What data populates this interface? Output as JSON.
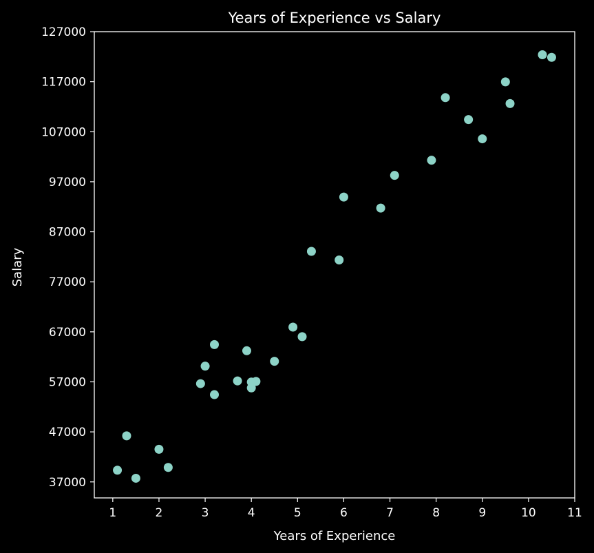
{
  "chart_data": {
    "type": "scatter",
    "title": "Years of Experience vs Salary",
    "xlabel": "Years of Experience",
    "ylabel": "Salary",
    "xlim": [
      0.6,
      11
    ],
    "ylim": [
      33800,
      127000
    ],
    "xticks": [
      1,
      2,
      3,
      4,
      5,
      6,
      7,
      8,
      9,
      10,
      11
    ],
    "yticks": [
      37000,
      47000,
      57000,
      67000,
      77000,
      87000,
      97000,
      107000,
      117000,
      127000
    ],
    "grid": false,
    "legend": "none",
    "colors": {
      "background": "#000000",
      "axes": "#ffffff",
      "text": "#ffffff",
      "marker": "#8dd3c7"
    },
    "x": [
      1.1,
      1.3,
      1.5,
      2.0,
      2.2,
      2.9,
      3.0,
      3.2,
      3.2,
      3.7,
      3.9,
      4.0,
      4.0,
      4.1,
      4.5,
      4.9,
      5.1,
      5.3,
      5.9,
      6.0,
      6.8,
      7.1,
      7.9,
      8.2,
      8.7,
      9.0,
      9.5,
      9.6,
      10.3,
      10.5
    ],
    "y": [
      39343,
      46205,
      37731,
      43525,
      39891,
      56642,
      60150,
      54445,
      64445,
      57189,
      63218,
      55794,
      56957,
      57081,
      61111,
      67938,
      66029,
      83088,
      81363,
      93940,
      91738,
      98273,
      101302,
      113812,
      109431,
      105582,
      116969,
      112635,
      122391,
      121872
    ]
  }
}
